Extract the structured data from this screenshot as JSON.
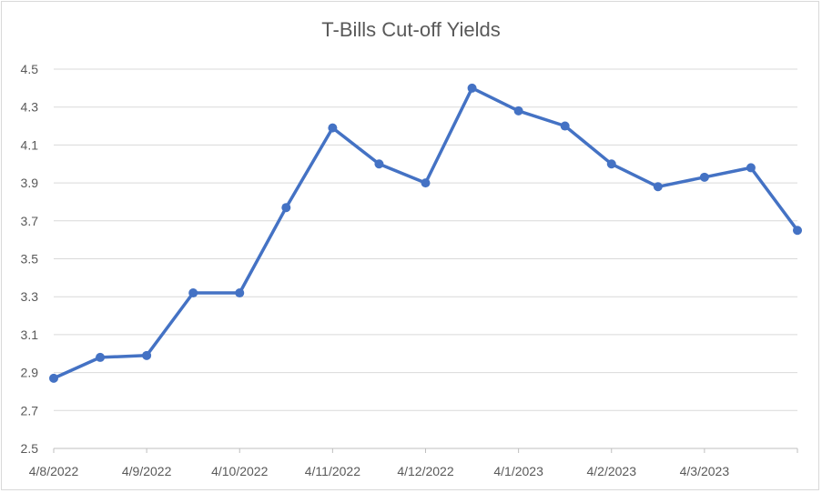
{
  "chart_data": {
    "type": "line",
    "title": "T-Bills Cut-off Yields",
    "xlabel": "",
    "ylabel": "",
    "x_tick_labels": [
      "4/8/2022",
      "4/9/2022",
      "4/10/2022",
      "4/11/2022",
      "4/12/2022",
      "4/1/2023",
      "4/2/2023",
      "4/3/2023"
    ],
    "y_ticks": [
      "2.5",
      "2.7",
      "2.9",
      "3.1",
      "3.3",
      "3.5",
      "3.7",
      "3.9",
      "4.1",
      "4.3",
      "4.5"
    ],
    "ylim": [
      2.5,
      4.5
    ],
    "grid": true,
    "legend": "none",
    "series": [
      {
        "color": "#4472c4",
        "values": [
          2.87,
          2.98,
          2.99,
          3.32,
          3.32,
          3.77,
          4.19,
          4.0,
          3.9,
          4.4,
          4.28,
          4.2,
          4.0,
          3.88,
          3.93,
          3.98,
          3.65
        ]
      }
    ]
  }
}
